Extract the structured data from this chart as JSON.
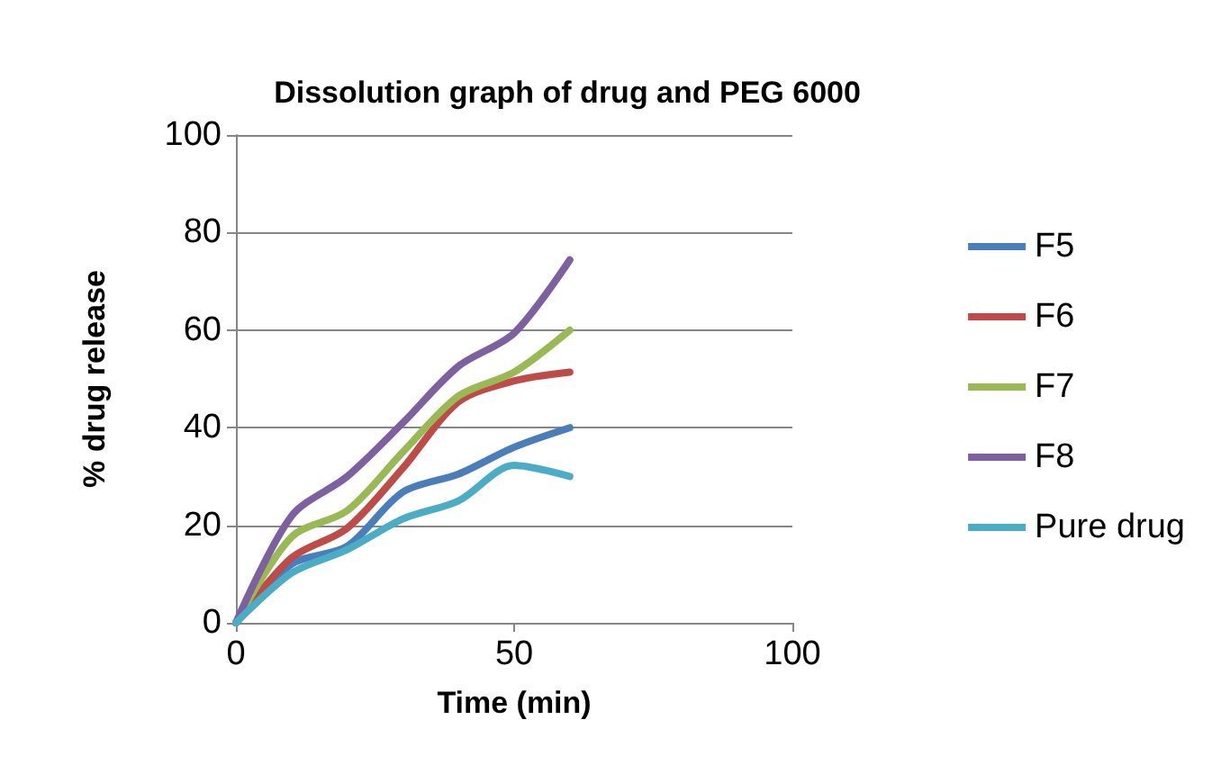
{
  "chart_data": {
    "type": "line",
    "title": "Dissolution graph of drug and PEG 6000",
    "xlabel": "Time (min)",
    "ylabel": "% drug release",
    "x": [
      0,
      10,
      20,
      30,
      40,
      50,
      60
    ],
    "series": [
      {
        "name": "F5",
        "color": "#4a7ebb",
        "values": [
          0,
          12,
          15.7,
          26.8,
          30.5,
          36,
          40
        ]
      },
      {
        "name": "F6",
        "color": "#be4b48",
        "values": [
          0,
          13.3,
          19.4,
          31.7,
          45.3,
          49.6,
          51.4
        ]
      },
      {
        "name": "F7",
        "color": "#98b954",
        "values": [
          0,
          17.6,
          23,
          35,
          46.5,
          51.4,
          60
        ]
      },
      {
        "name": "F8",
        "color": "#7d60a0",
        "values": [
          0,
          21.9,
          30,
          41,
          52.6,
          59.4,
          74.4
        ]
      },
      {
        "name": "Pure drug",
        "color": "#4bacc6",
        "values": [
          0,
          10.2,
          15,
          21.3,
          25,
          32.3,
          30
        ]
      }
    ],
    "xlim": [
      0,
      100
    ],
    "xticks": [
      0,
      50,
      100
    ],
    "ylim": [
      0,
      100
    ],
    "yticks": [
      0,
      20,
      40,
      60,
      80,
      100
    ],
    "grid": "y",
    "legend": "right",
    "marker": "none"
  }
}
